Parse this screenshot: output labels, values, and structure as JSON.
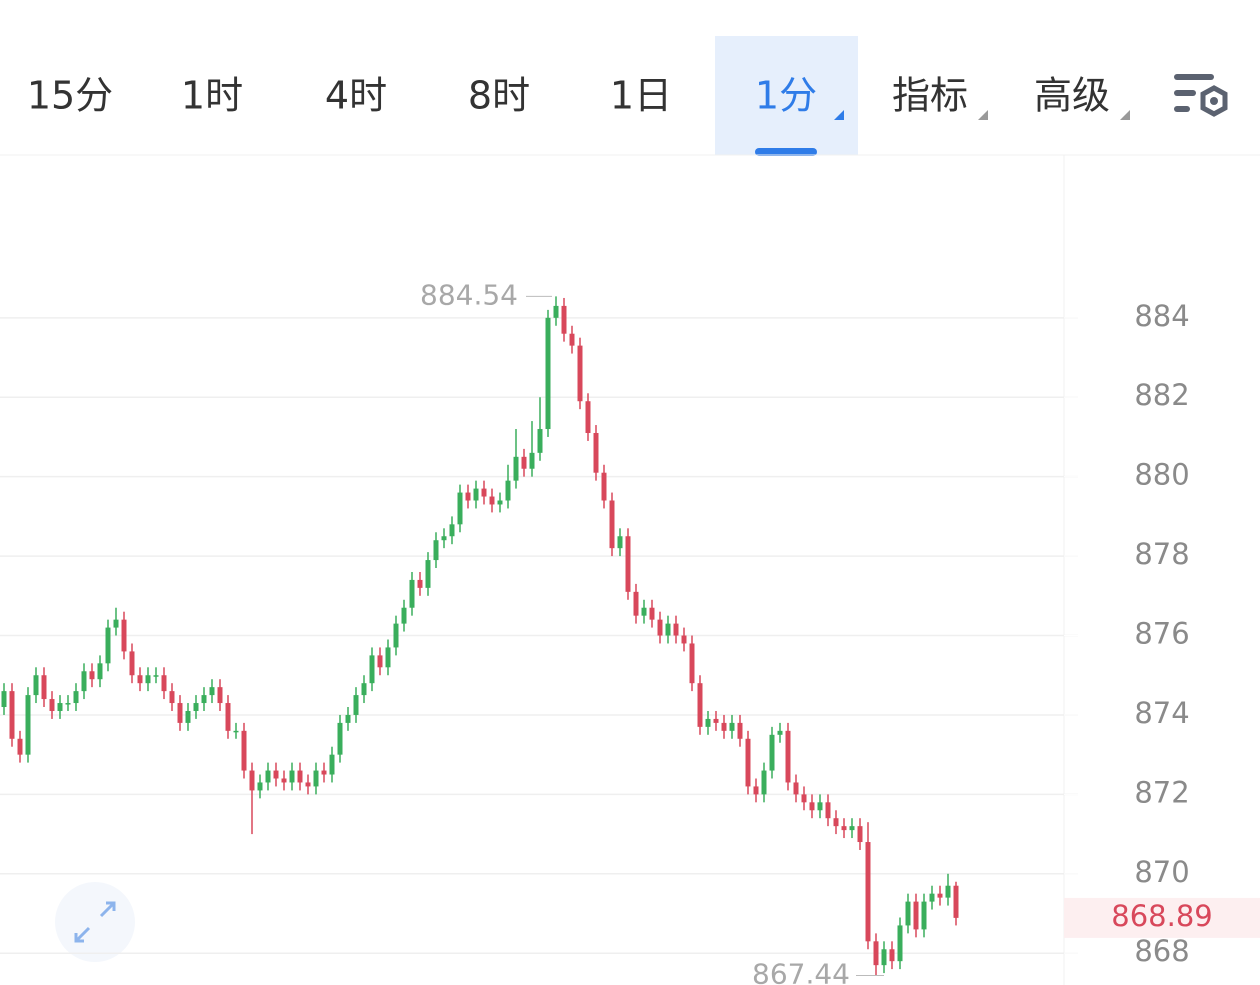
{
  "tabs": [
    "15分",
    "1时",
    "4时",
    "8时",
    "1日",
    "1分",
    "指标",
    "高级"
  ],
  "active_tab": 5,
  "chart_data": {
    "type": "candlestick",
    "ylim": [
      867.2,
      888.1
    ],
    "yticks": [
      868,
      870,
      872,
      874,
      876,
      878,
      880,
      882,
      884
    ],
    "grid": true,
    "up_color": "#3aae5c",
    "down_color": "#d8485b",
    "high_label": 884.54,
    "low_label": 867.44,
    "last_price": 868.89,
    "candles": [
      [
        874.2,
        874.8,
        874.0,
        874.6
      ],
      [
        874.6,
        874.8,
        873.2,
        873.4
      ],
      [
        873.4,
        873.6,
        872.8,
        873.0
      ],
      [
        873.0,
        874.7,
        872.8,
        874.5
      ],
      [
        874.5,
        875.2,
        874.3,
        875.0
      ],
      [
        875.0,
        875.2,
        874.2,
        874.4
      ],
      [
        874.4,
        874.6,
        873.9,
        874.1
      ],
      [
        874.1,
        874.5,
        873.9,
        874.3
      ],
      [
        874.3,
        874.5,
        874.1,
        874.3
      ],
      [
        874.3,
        874.8,
        874.1,
        874.6
      ],
      [
        874.6,
        875.3,
        874.4,
        875.1
      ],
      [
        875.1,
        875.3,
        874.7,
        874.9
      ],
      [
        874.9,
        875.5,
        874.7,
        875.3
      ],
      [
        875.3,
        876.4,
        875.1,
        876.2
      ],
      [
        876.2,
        876.7,
        876.0,
        876.4
      ],
      [
        876.4,
        876.6,
        875.4,
        875.6
      ],
      [
        875.6,
        875.8,
        874.8,
        875.0
      ],
      [
        875.0,
        875.2,
        874.6,
        874.8
      ],
      [
        874.8,
        875.2,
        874.6,
        875.0
      ],
      [
        875.0,
        875.2,
        874.8,
        875.0
      ],
      [
        875.0,
        875.2,
        874.4,
        874.6
      ],
      [
        874.6,
        874.8,
        874.1,
        874.3
      ],
      [
        874.3,
        874.5,
        873.6,
        873.8
      ],
      [
        873.8,
        874.3,
        873.6,
        874.1
      ],
      [
        874.1,
        874.5,
        873.9,
        874.3
      ],
      [
        874.3,
        874.7,
        874.1,
        874.5
      ],
      [
        874.5,
        874.9,
        874.3,
        874.7
      ],
      [
        874.7,
        874.9,
        874.1,
        874.3
      ],
      [
        874.3,
        874.5,
        873.4,
        873.6
      ],
      [
        873.6,
        873.8,
        873.4,
        873.6
      ],
      [
        873.6,
        873.8,
        872.4,
        872.6
      ],
      [
        872.6,
        872.8,
        871.0,
        872.1
      ],
      [
        872.1,
        872.5,
        871.9,
        872.3
      ],
      [
        872.3,
        872.8,
        872.1,
        872.6
      ],
      [
        872.6,
        872.8,
        872.2,
        872.4
      ],
      [
        872.4,
        872.6,
        872.1,
        872.3
      ],
      [
        872.3,
        872.8,
        872.1,
        872.6
      ],
      [
        872.6,
        872.8,
        872.1,
        872.3
      ],
      [
        872.3,
        872.5,
        872.0,
        872.2
      ],
      [
        872.2,
        872.8,
        872.0,
        872.6
      ],
      [
        872.6,
        872.8,
        872.3,
        872.5
      ],
      [
        872.5,
        873.2,
        872.3,
        873.0
      ],
      [
        873.0,
        874.0,
        872.8,
        873.8
      ],
      [
        873.8,
        874.2,
        873.6,
        874.0
      ],
      [
        874.0,
        874.7,
        873.8,
        874.5
      ],
      [
        874.5,
        875.0,
        874.3,
        874.8
      ],
      [
        874.8,
        875.7,
        874.6,
        875.5
      ],
      [
        875.5,
        875.7,
        875.0,
        875.2
      ],
      [
        875.2,
        875.9,
        875.0,
        875.7
      ],
      [
        875.7,
        876.5,
        875.5,
        876.3
      ],
      [
        876.3,
        876.9,
        876.1,
        876.7
      ],
      [
        876.7,
        877.6,
        876.5,
        877.4
      ],
      [
        877.4,
        877.6,
        877.0,
        877.2
      ],
      [
        877.2,
        878.1,
        877.0,
        877.9
      ],
      [
        877.9,
        878.6,
        877.7,
        878.4
      ],
      [
        878.4,
        878.7,
        878.2,
        878.5
      ],
      [
        878.5,
        879.0,
        878.3,
        878.8
      ],
      [
        878.8,
        879.8,
        878.6,
        879.6
      ],
      [
        879.6,
        879.8,
        879.2,
        879.4
      ],
      [
        879.4,
        879.9,
        879.2,
        879.7
      ],
      [
        879.7,
        879.9,
        879.3,
        879.5
      ],
      [
        879.5,
        879.7,
        879.1,
        879.3
      ],
      [
        879.3,
        879.6,
        879.1,
        879.4
      ],
      [
        879.4,
        880.3,
        879.2,
        879.9
      ],
      [
        879.9,
        881.2,
        879.7,
        880.5
      ],
      [
        880.5,
        880.7,
        880.0,
        880.2
      ],
      [
        880.2,
        881.4,
        880.0,
        880.6
      ],
      [
        880.6,
        882.0,
        880.4,
        881.2
      ],
      [
        881.2,
        884.2,
        881.0,
        884.0
      ],
      [
        884.0,
        884.54,
        883.8,
        884.3
      ],
      [
        884.3,
        884.5,
        883.4,
        883.6
      ],
      [
        883.6,
        883.8,
        883.1,
        883.3
      ],
      [
        883.3,
        883.5,
        881.7,
        881.9
      ],
      [
        881.9,
        882.1,
        880.9,
        881.1
      ],
      [
        881.1,
        881.3,
        879.9,
        880.1
      ],
      [
        880.1,
        880.3,
        879.2,
        879.4
      ],
      [
        879.4,
        879.6,
        878.0,
        878.2
      ],
      [
        878.2,
        878.7,
        878.0,
        878.5
      ],
      [
        878.5,
        878.7,
        876.9,
        877.1
      ],
      [
        877.1,
        877.3,
        876.3,
        876.5
      ],
      [
        876.5,
        876.9,
        876.3,
        876.7
      ],
      [
        876.7,
        876.9,
        876.2,
        876.4
      ],
      [
        876.4,
        876.6,
        875.8,
        876.0
      ],
      [
        876.0,
        876.5,
        875.8,
        876.3
      ],
      [
        876.3,
        876.5,
        875.8,
        876.0
      ],
      [
        876.0,
        876.2,
        875.6,
        875.8
      ],
      [
        875.8,
        876.0,
        874.6,
        874.8
      ],
      [
        874.8,
        875.0,
        873.5,
        873.7
      ],
      [
        873.7,
        874.1,
        873.5,
        873.9
      ],
      [
        873.9,
        874.1,
        873.6,
        873.8
      ],
      [
        873.8,
        874.0,
        873.4,
        873.6
      ],
      [
        873.6,
        874.0,
        873.4,
        873.8
      ],
      [
        873.8,
        874.0,
        873.2,
        873.4
      ],
      [
        873.4,
        873.6,
        872.0,
        872.2
      ],
      [
        872.2,
        872.4,
        871.8,
        872.0
      ],
      [
        872.0,
        872.8,
        871.8,
        872.6
      ],
      [
        872.6,
        873.7,
        872.4,
        873.5
      ],
      [
        873.5,
        873.8,
        873.3,
        873.6
      ],
      [
        873.6,
        873.8,
        872.1,
        872.3
      ],
      [
        872.3,
        872.5,
        871.8,
        872.0
      ],
      [
        872.0,
        872.2,
        871.6,
        871.8
      ],
      [
        871.8,
        872.0,
        871.4,
        871.6
      ],
      [
        871.6,
        872.0,
        871.4,
        871.8
      ],
      [
        871.8,
        872.0,
        871.2,
        871.4
      ],
      [
        871.4,
        871.6,
        871.0,
        871.2
      ],
      [
        871.2,
        871.4,
        870.9,
        871.1
      ],
      [
        871.1,
        871.4,
        870.9,
        871.2
      ],
      [
        871.2,
        871.4,
        870.6,
        870.8
      ],
      [
        870.8,
        871.3,
        868.1,
        868.3
      ],
      [
        868.3,
        868.5,
        867.44,
        867.7
      ],
      [
        867.7,
        868.3,
        867.5,
        868.1
      ],
      [
        868.1,
        868.3,
        867.6,
        867.8
      ],
      [
        867.8,
        868.9,
        867.6,
        868.7
      ],
      [
        868.7,
        869.5,
        868.5,
        869.3
      ],
      [
        869.3,
        869.5,
        868.4,
        868.6
      ],
      [
        868.6,
        869.5,
        868.4,
        869.3
      ],
      [
        869.3,
        869.7,
        869.1,
        869.5
      ],
      [
        869.5,
        869.7,
        869.2,
        869.4
      ],
      [
        869.4,
        870.0,
        869.2,
        869.7
      ],
      [
        869.7,
        869.8,
        868.7,
        868.89
      ]
    ]
  }
}
